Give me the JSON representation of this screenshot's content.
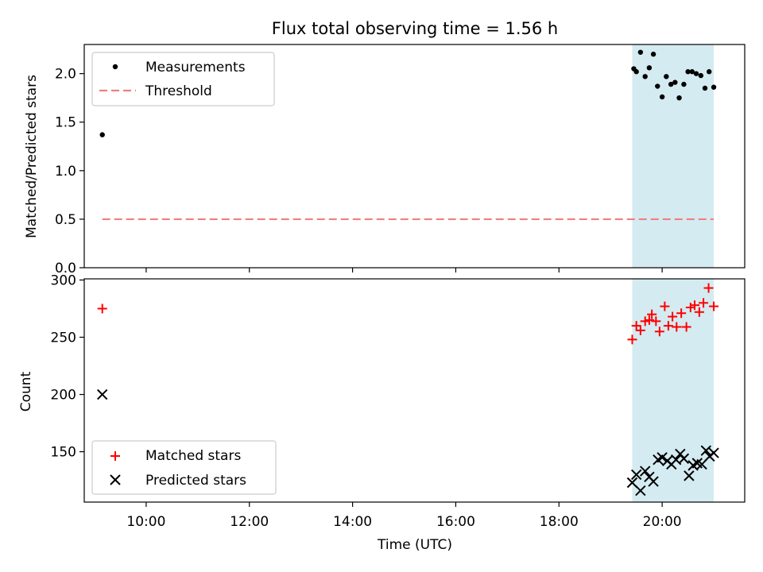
{
  "chart_data": {
    "title": "Flux total observing time = 1.56 h",
    "xlabel": "Time (UTC)",
    "x_unit": "hours UTC",
    "xlim": [
      8.8,
      21.6
    ],
    "x_ticks": [
      {
        "value": 10,
        "label": "10:00"
      },
      {
        "value": 12,
        "label": "12:00"
      },
      {
        "value": 14,
        "label": "14:00"
      },
      {
        "value": 16,
        "label": "16:00"
      },
      {
        "value": 18,
        "label": "18:00"
      },
      {
        "value": 20,
        "label": "20:00"
      }
    ],
    "shaded_region": {
      "x": [
        19.42,
        21.0
      ],
      "color": "#d4ebf1"
    },
    "top": {
      "type": "scatter",
      "ylabel": "Matched/Predicted stars",
      "ylim": [
        0,
        2.3
      ],
      "y_ticks": [
        {
          "value": 0.0,
          "label": "0.0"
        },
        {
          "value": 0.5,
          "label": "0.5"
        },
        {
          "value": 1.0,
          "label": "1.0"
        },
        {
          "value": 1.5,
          "label": "1.5"
        },
        {
          "value": 2.0,
          "label": "2.0"
        }
      ],
      "legend": {
        "position": "top-left",
        "entries": [
          "Measurements",
          "Threshold"
        ]
      },
      "measurements": {
        "name": "Measurements",
        "color": "#000000",
        "points": [
          [
            9.15,
            1.37
          ],
          [
            19.45,
            2.05
          ],
          [
            19.5,
            2.02
          ],
          [
            19.58,
            2.22
          ],
          [
            19.67,
            1.97
          ],
          [
            19.75,
            2.06
          ],
          [
            19.83,
            2.2
          ],
          [
            19.91,
            1.87
          ],
          [
            20.0,
            1.76
          ],
          [
            20.08,
            1.97
          ],
          [
            20.17,
            1.89
          ],
          [
            20.25,
            1.91
          ],
          [
            20.33,
            1.75
          ],
          [
            20.42,
            1.89
          ],
          [
            20.5,
            2.02
          ],
          [
            20.58,
            2.02
          ],
          [
            20.66,
            2.0
          ],
          [
            20.75,
            1.98
          ],
          [
            20.83,
            1.85
          ],
          [
            20.91,
            2.02
          ],
          [
            21.0,
            1.86
          ]
        ]
      },
      "threshold": {
        "name": "Threshold",
        "value": 0.5,
        "x": [
          9.15,
          21.0
        ],
        "color": "#f08080"
      }
    },
    "bottom": {
      "type": "scatter",
      "ylabel": "Count",
      "ylim": [
        106,
        301
      ],
      "y_ticks": [
        {
          "value": 150,
          "label": "150"
        },
        {
          "value": 200,
          "label": "200"
        },
        {
          "value": 250,
          "label": "250"
        },
        {
          "value": 300,
          "label": "300"
        }
      ],
      "legend": {
        "position": "bottom-left",
        "entries": [
          "Matched stars",
          "Predicted stars"
        ]
      },
      "matched": {
        "name": "Matched stars",
        "color": "#ff0000",
        "points": [
          [
            9.15,
            275
          ],
          [
            19.42,
            248
          ],
          [
            19.5,
            260
          ],
          [
            19.58,
            256
          ],
          [
            19.67,
            264
          ],
          [
            19.75,
            265
          ],
          [
            19.8,
            270
          ],
          [
            19.88,
            264
          ],
          [
            19.95,
            255
          ],
          [
            20.05,
            277
          ],
          [
            20.12,
            260
          ],
          [
            20.2,
            268
          ],
          [
            20.28,
            259
          ],
          [
            20.37,
            271
          ],
          [
            20.47,
            259
          ],
          [
            20.55,
            276
          ],
          [
            20.63,
            278
          ],
          [
            20.72,
            272
          ],
          [
            20.8,
            280
          ],
          [
            20.9,
            293
          ],
          [
            21.0,
            277
          ]
        ]
      },
      "predicted": {
        "name": "Predicted stars",
        "color": "#000000",
        "points": [
          [
            9.15,
            200
          ],
          [
            19.42,
            123
          ],
          [
            19.5,
            130
          ],
          [
            19.58,
            116
          ],
          [
            19.67,
            133
          ],
          [
            19.75,
            128
          ],
          [
            19.83,
            124
          ],
          [
            19.92,
            143
          ],
          [
            20.0,
            145
          ],
          [
            20.1,
            142
          ],
          [
            20.18,
            139
          ],
          [
            20.27,
            143
          ],
          [
            20.35,
            148
          ],
          [
            20.42,
            144
          ],
          [
            20.52,
            129
          ],
          [
            20.6,
            138
          ],
          [
            20.68,
            140
          ],
          [
            20.77,
            139
          ],
          [
            20.85,
            151
          ],
          [
            20.92,
            146
          ],
          [
            21.0,
            149
          ]
        ]
      }
    }
  }
}
